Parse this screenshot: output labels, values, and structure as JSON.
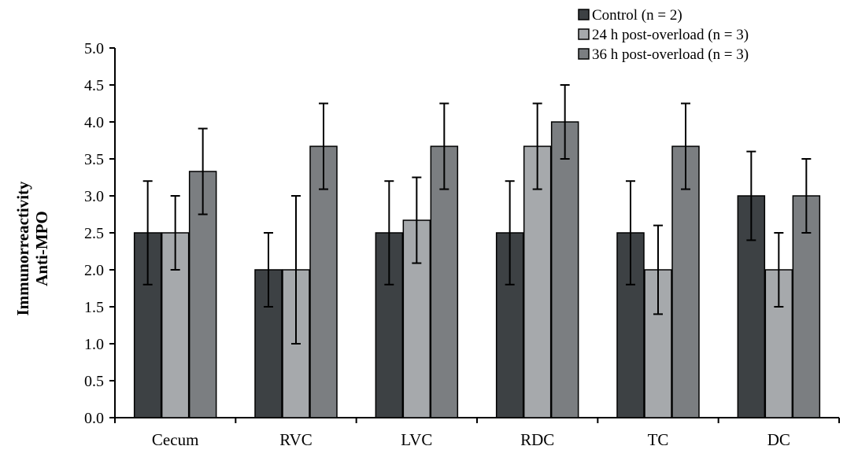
{
  "chart_data": {
    "type": "bar",
    "title": "",
    "xlabel": "",
    "ylabel": [
      "Immunorreactivity",
      "Anti-MPO"
    ],
    "ylim": [
      0,
      5
    ],
    "ytick_step": 0.5,
    "yticks": [
      "0.0",
      "0.5",
      "1.0",
      "1.5",
      "2.0",
      "2.5",
      "3.0",
      "3.5",
      "4.0",
      "4.5",
      "5.0"
    ],
    "grid": false,
    "legend_position": "top-right",
    "categories": [
      "Cecum",
      "RVC",
      "LVC",
      "RDC",
      "TC",
      "DC"
    ],
    "series": [
      {
        "name": "Control (n = 2)",
        "color": "#3d4144",
        "values": [
          2.5,
          2.0,
          2.5,
          2.5,
          2.5,
          3.0
        ],
        "errors": [
          0.7,
          0.5,
          0.7,
          0.7,
          0.7,
          0.6
        ]
      },
      {
        "name": "24 h post-overload (n = 3)",
        "color": "#a6a9ac",
        "values": [
          2.5,
          2.0,
          2.67,
          3.67,
          2.0,
          2.0
        ],
        "errors": [
          0.5,
          1.0,
          0.58,
          0.58,
          0.6,
          0.5
        ]
      },
      {
        "name": "36 h post-overload (n = 3)",
        "color": "#7b7e81",
        "values": [
          3.33,
          3.67,
          3.67,
          4.0,
          3.67,
          3.0
        ],
        "errors": [
          0.58,
          0.58,
          0.58,
          0.5,
          0.58,
          0.5
        ]
      }
    ]
  }
}
